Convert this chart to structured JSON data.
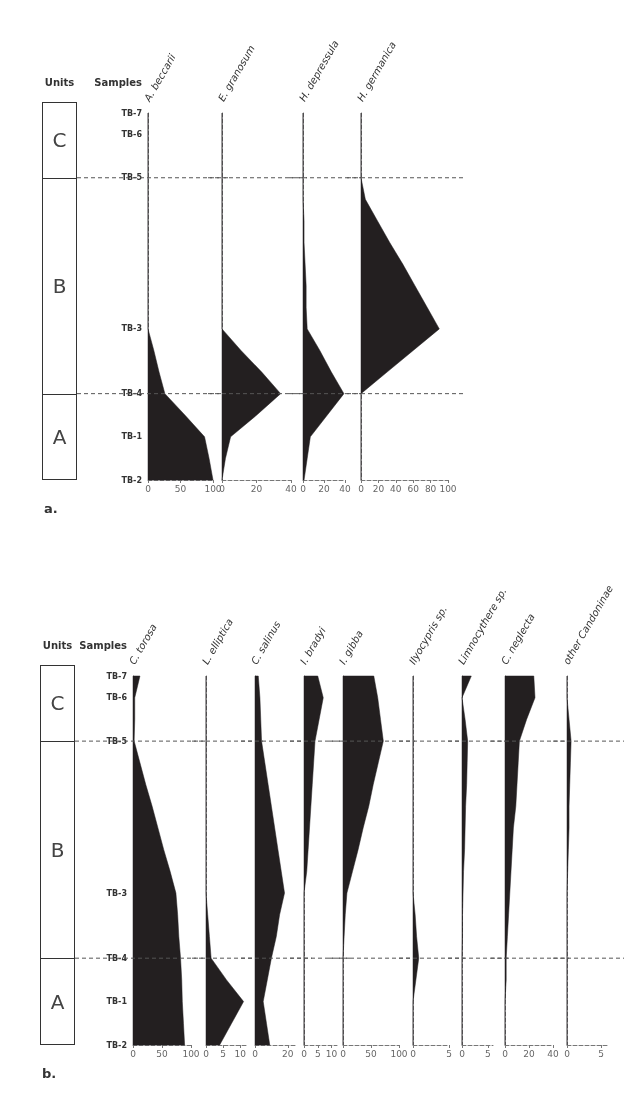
{
  "chart_data": [
    {
      "type": "area",
      "orientation": "horizontal",
      "title": "A. beccarii",
      "ylabel": "Samples",
      "annotations": [
        "Units",
        "C",
        "B",
        "A",
        "a."
      ],
      "categories": [
        "TB-7",
        "TB-6",
        null,
        "TB-5",
        null,
        null,
        null,
        null,
        null,
        null,
        "TB-3",
        null,
        null,
        "TB-4",
        null,
        "TB-1",
        null,
        "TB-2"
      ],
      "values": [
        0,
        0,
        0,
        0,
        0,
        0,
        0,
        0,
        0,
        0,
        0,
        9,
        17,
        26,
        57,
        87,
        94,
        100
      ],
      "color": "#231f20",
      "xlim": [
        0,
        100
      ],
      "xticks": [
        0,
        50,
        100
      ],
      "ref_lines": [
        {
          "axis": "y",
          "value": "TB-5",
          "line_style": "dashed"
        },
        {
          "axis": "y",
          "value": "TB-4",
          "line_style": "dashed"
        }
      ]
    },
    {
      "type": "area",
      "orientation": "horizontal",
      "title": "E. granosum",
      "tick_labels": "x",
      "categories": [
        "TB-7",
        "TB-6",
        null,
        "TB-5",
        null,
        null,
        null,
        null,
        null,
        null,
        "TB-3",
        null,
        null,
        "TB-4",
        null,
        "TB-1",
        null,
        "TB-2"
      ],
      "values": [
        0,
        0,
        0,
        0,
        0,
        0,
        0,
        0,
        0,
        0,
        0,
        11,
        23,
        34,
        20,
        5,
        2,
        0
      ],
      "color": "#231f20",
      "xlim": [
        0,
        40
      ],
      "xticks": [
        0,
        20,
        40
      ],
      "ref_lines": [
        {
          "axis": "y",
          "value": "TB-5",
          "line_style": "dashed"
        },
        {
          "axis": "y",
          "value": "TB-4",
          "line_style": "dashed"
        }
      ]
    },
    {
      "type": "area",
      "orientation": "horizontal",
      "title": "H. depressula",
      "tick_labels": "x",
      "categories": [
        "TB-7",
        "TB-6",
        null,
        "TB-5",
        null,
        null,
        null,
        null,
        null,
        null,
        "TB-3",
        null,
        null,
        "TB-4",
        null,
        "TB-1",
        null,
        "TB-2"
      ],
      "values": [
        0,
        0,
        0,
        0,
        0,
        1,
        1,
        2,
        3,
        3,
        4,
        16,
        27,
        39,
        23,
        7,
        4,
        1
      ],
      "color": "#231f20",
      "xlim": [
        0,
        40
      ],
      "xticks": [
        0,
        20,
        40
      ],
      "ref_lines": [
        {
          "axis": "y",
          "value": "TB-5",
          "line_style": "dashed"
        },
        {
          "axis": "y",
          "value": "TB-4",
          "line_style": "dashed"
        }
      ]
    },
    {
      "type": "area",
      "orientation": "horizontal",
      "title": "H. germanica",
      "tick_labels": "x",
      "categories": [
        "TB-7",
        "TB-6",
        null,
        "TB-5",
        null,
        null,
        null,
        null,
        null,
        null,
        "TB-3",
        null,
        null,
        "TB-4",
        null,
        "TB-1",
        null,
        "TB-2"
      ],
      "values": [
        0,
        0,
        0,
        0,
        5,
        19,
        33,
        48,
        62,
        76,
        90,
        60,
        30,
        0,
        0,
        0,
        0,
        0
      ],
      "color": "#231f20",
      "xlim": [
        0,
        100
      ],
      "xticks": [
        0,
        20,
        40,
        60,
        80,
        100
      ],
      "ref_lines": [
        {
          "axis": "y",
          "value": "TB-5",
          "line_style": "dashed"
        },
        {
          "axis": "y",
          "value": "TB-4",
          "line_style": "dashed"
        }
      ]
    },
    {
      "type": "area",
      "orientation": "horizontal",
      "title": "C. torosa",
      "ylabel": "Samples",
      "annotations": [
        "Units",
        "C",
        "B",
        "A",
        "b."
      ],
      "categories": [
        "TB-7",
        "TB-6",
        null,
        "TB-5",
        null,
        null,
        null,
        null,
        null,
        null,
        "TB-3",
        null,
        null,
        "TB-4",
        null,
        "TB-1",
        null,
        "TB-2"
      ],
      "values": [
        12,
        3,
        3,
        2,
        12,
        22,
        33,
        43,
        53,
        64,
        74,
        77,
        79,
        82,
        84,
        85,
        87,
        89
      ],
      "color": "#231f20",
      "xlim": [
        0,
        100
      ],
      "xticks": [
        0,
        50,
        100
      ],
      "ref_lines": [
        {
          "axis": "y",
          "value": "TB-5",
          "line_style": "dashed"
        },
        {
          "axis": "y",
          "value": "TB-4",
          "line_style": "dashed"
        }
      ]
    },
    {
      "type": "area",
      "orientation": "horizontal",
      "title": "L. elliptica",
      "tick_labels": "x",
      "categories": [
        "TB-7",
        "TB-6",
        null,
        "TB-5",
        null,
        null,
        null,
        null,
        null,
        null,
        "TB-3",
        null,
        null,
        "TB-4",
        null,
        "TB-1",
        null,
        "TB-2"
      ],
      "values": [
        0,
        0,
        0,
        0,
        0,
        0,
        0,
        0,
        0,
        0,
        0,
        0.5,
        1,
        1.5,
        6,
        11,
        7.5,
        4
      ],
      "color": "#231f20",
      "xlim": [
        0,
        12
      ],
      "xticks": [
        0,
        5,
        10
      ],
      "ref_lines": [
        {
          "axis": "y",
          "value": "TB-5",
          "line_style": "dashed"
        },
        {
          "axis": "y",
          "value": "TB-4",
          "line_style": "dashed"
        }
      ]
    },
    {
      "type": "area",
      "orientation": "horizontal",
      "title": "C. salinus",
      "tick_labels": "x",
      "categories": [
        "TB-7",
        "TB-6",
        null,
        "TB-5",
        null,
        null,
        null,
        null,
        null,
        null,
        "TB-3",
        null,
        null,
        "TB-4",
        null,
        "TB-1",
        null,
        "TB-2"
      ],
      "values": [
        2,
        3,
        3.5,
        4,
        6,
        8,
        10,
        12,
        14,
        16,
        18,
        15,
        13,
        10,
        7.5,
        5,
        7,
        9
      ],
      "color": "#231f20",
      "xlim": [
        0,
        25
      ],
      "xticks": [
        0,
        20
      ],
      "ref_lines": [
        {
          "axis": "y",
          "value": "TB-5",
          "line_style": "dashed"
        },
        {
          "axis": "y",
          "value": "TB-4",
          "line_style": "dashed"
        }
      ]
    },
    {
      "type": "area",
      "orientation": "horizontal",
      "title": "I. bradyi",
      "tick_labels": "x",
      "categories": [
        "TB-7",
        "TB-6",
        null,
        "TB-5",
        null,
        null,
        null,
        null,
        null,
        null,
        "TB-3",
        null,
        null,
        "TB-4",
        null,
        "TB-1",
        null,
        "TB-2"
      ],
      "values": [
        5,
        7,
        5.5,
        4,
        3.5,
        3,
        2.5,
        2,
        1.5,
        1,
        0,
        0,
        0,
        0,
        0,
        0,
        0,
        0
      ],
      "color": "#231f20",
      "xlim": [
        0,
        12
      ],
      "xticks": [
        0,
        5,
        10
      ],
      "ref_lines": [
        {
          "axis": "y",
          "value": "TB-5",
          "line_style": "dashed"
        },
        {
          "axis": "y",
          "value": "TB-4",
          "line_style": "dashed"
        }
      ]
    },
    {
      "type": "area",
      "orientation": "horizontal",
      "title": "I. gibba",
      "tick_labels": "x",
      "categories": [
        "TB-7",
        "TB-6",
        null,
        "TB-5",
        null,
        null,
        null,
        null,
        null,
        null,
        "TB-3",
        null,
        null,
        "TB-4",
        null,
        "TB-1",
        null,
        "TB-2"
      ],
      "values": [
        55,
        62,
        67,
        72,
        63,
        54,
        46,
        36,
        27,
        17,
        7,
        4,
        2,
        0,
        0,
        0,
        0,
        0
      ],
      "color": "#231f20",
      "xlim": [
        0,
        100
      ],
      "xticks": [
        0,
        50,
        100
      ],
      "ref_lines": [
        {
          "axis": "y",
          "value": "TB-5",
          "line_style": "dashed"
        },
        {
          "axis": "y",
          "value": "TB-4",
          "line_style": "dashed"
        }
      ]
    },
    {
      "type": "area",
      "orientation": "horizontal",
      "title": "Ilyocypris sp.",
      "tick_labels": "x",
      "categories": [
        "TB-7",
        "TB-6",
        null,
        "TB-5",
        null,
        null,
        null,
        null,
        null,
        null,
        "TB-3",
        null,
        null,
        "TB-4",
        null,
        "TB-1",
        null,
        "TB-2"
      ],
      "values": [
        0,
        0,
        0,
        0,
        0,
        0,
        0,
        0,
        0,
        0,
        0,
        0.3,
        0.5,
        0.8,
        0.4,
        0,
        0,
        0
      ],
      "color": "#231f20",
      "xlim": [
        0,
        5
      ],
      "xticks": [
        0,
        5
      ],
      "ref_lines": [
        {
          "axis": "y",
          "value": "TB-5",
          "line_style": "dashed"
        },
        {
          "axis": "y",
          "value": "TB-4",
          "line_style": "dashed"
        }
      ]
    },
    {
      "type": "area",
      "orientation": "horizontal",
      "title": "Limnocythere sp.",
      "tick_labels": "x",
      "categories": [
        "TB-7",
        "TB-6",
        null,
        "TB-5",
        null,
        null,
        null,
        null,
        null,
        null,
        "TB-3",
        null,
        null,
        "TB-4",
        null,
        "TB-1",
        null,
        "TB-2"
      ],
      "values": [
        1.8,
        0,
        0.6,
        1.1,
        1,
        0.9,
        0.7,
        0.6,
        0.5,
        0.3,
        0.2,
        0.1,
        0.1,
        0,
        0,
        0,
        0,
        0
      ],
      "color": "#231f20",
      "xlim": [
        0,
        6
      ],
      "xticks": [
        0,
        5
      ],
      "ref_lines": [
        {
          "axis": "y",
          "value": "TB-5",
          "line_style": "dashed"
        },
        {
          "axis": "y",
          "value": "TB-4",
          "line_style": "dashed"
        }
      ]
    },
    {
      "type": "area",
      "orientation": "horizontal",
      "title": "C. neglecta",
      "tick_labels": "x",
      "categories": [
        "TB-7",
        "TB-6",
        null,
        "TB-5",
        null,
        null,
        null,
        null,
        null,
        null,
        "TB-3",
        null,
        null,
        "TB-4",
        null,
        "TB-1",
        null,
        "TB-2"
      ],
      "values": [
        24,
        25,
        18,
        12,
        11,
        10,
        9,
        7,
        6,
        5,
        4,
        3,
        2,
        1,
        1,
        0,
        0,
        0
      ],
      "color": "#231f20",
      "xlim": [
        0,
        40
      ],
      "xticks": [
        0,
        20,
        40
      ],
      "ref_lines": [
        {
          "axis": "y",
          "value": "TB-5",
          "line_style": "dashed"
        },
        {
          "axis": "y",
          "value": "TB-4",
          "line_style": "dashed"
        }
      ]
    },
    {
      "type": "area",
      "orientation": "horizontal",
      "title": "other Candoninae",
      "tick_labels": "x",
      "categories": [
        "TB-7",
        "TB-6",
        null,
        "TB-5",
        null,
        null,
        null,
        null,
        null,
        null,
        "TB-3",
        null,
        null,
        "TB-4",
        null,
        "TB-1",
        null,
        "TB-2"
      ],
      "values": [
        0,
        0,
        0.3,
        0.6,
        0.5,
        0.4,
        0.3,
        0.3,
        0.2,
        0.1,
        0,
        0,
        0,
        0,
        0,
        0,
        0,
        0
      ],
      "color": "#231f20",
      "xlim": [
        0,
        6
      ],
      "xticks": [
        0,
        5
      ],
      "ref_lines": [
        {
          "axis": "y",
          "value": "TB-5",
          "line_style": "dashed"
        },
        {
          "axis": "y",
          "value": "TB-4",
          "line_style": "dashed"
        }
      ]
    }
  ]
}
